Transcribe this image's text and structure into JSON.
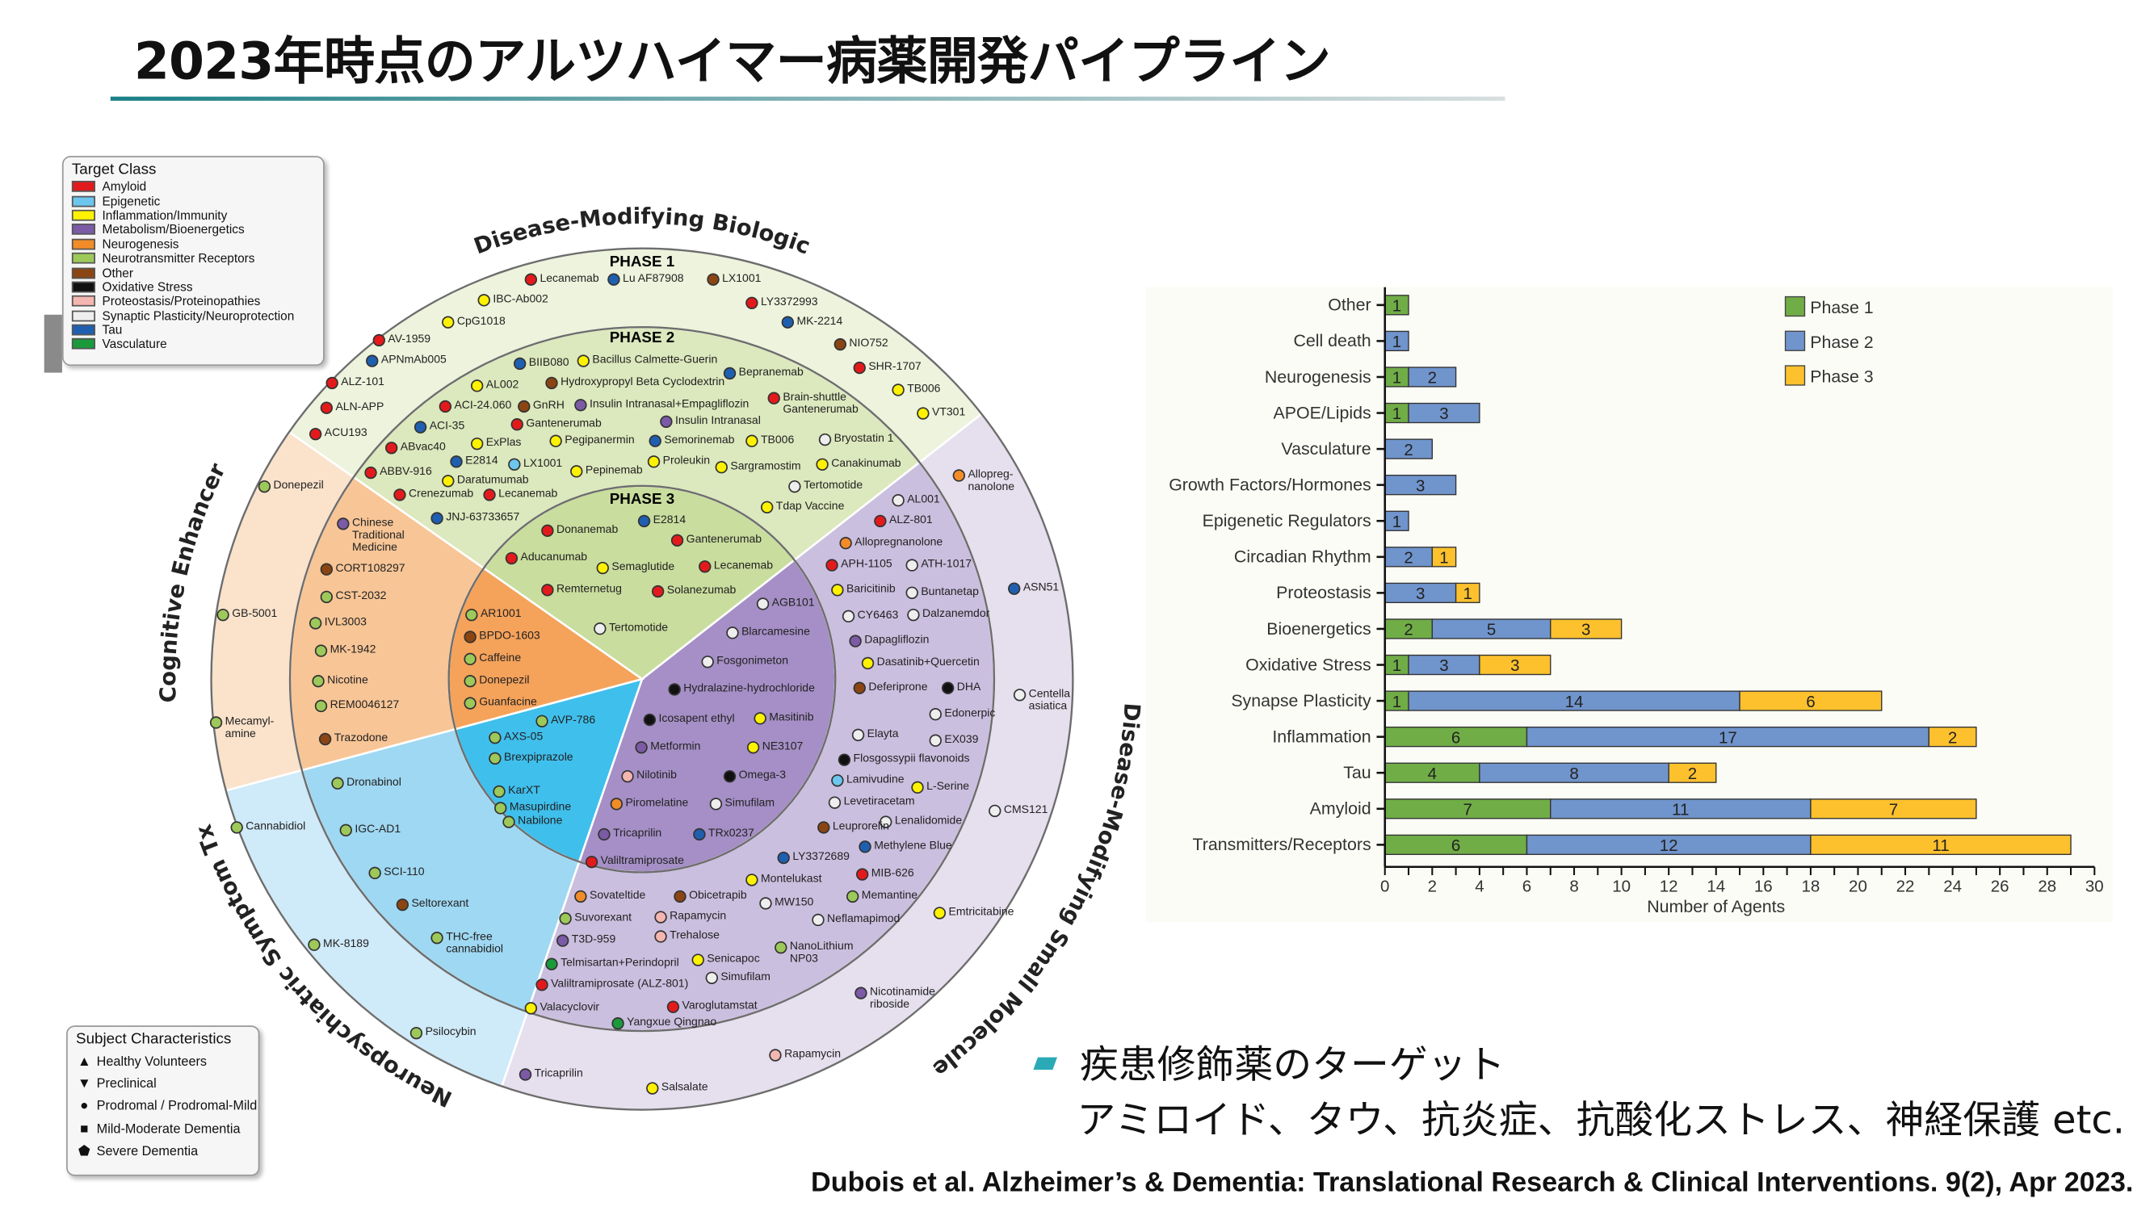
{
  "title": "2023年時点のアルツハイマー病薬開発パイプライン",
  "wheel": {
    "sectors": {
      "biologic": "Disease-Modifying Biologic",
      "cognitive": "Cognitive Enhancer",
      "neuropsych": "Neuropsychiatric Symptom Tx",
      "small_molecule": "Disease-Modifying Small Molecule"
    },
    "phases": [
      "PHASE 1",
      "PHASE 2",
      "PHASE 3"
    ],
    "target_legend": {
      "title": "Target Class",
      "items": [
        {
          "label": "Amyloid",
          "color": "#e31a1c"
        },
        {
          "label": "Epigenetic",
          "color": "#6cc6ee"
        },
        {
          "label": "Inflammation/Immunity",
          "color": "#fff200"
        },
        {
          "label": "Metabolism/Bioenergetics",
          "color": "#7b5aa6"
        },
        {
          "label": "Neurogenesis",
          "color": "#f28c28"
        },
        {
          "label": "Neurotransmitter Receptors",
          "color": "#9dc85a"
        },
        {
          "label": "Other",
          "color": "#8b4513"
        },
        {
          "label": "Oxidative Stress",
          "color": "#111111"
        },
        {
          "label": "Proteostasis/Proteinopathies",
          "color": "#f4b6b0"
        },
        {
          "label": "Synaptic Plasticity/Neuroprotection",
          "color": "#eeeeee"
        },
        {
          "label": "Tau",
          "color": "#1f5fb0"
        },
        {
          "label": "Vasculature",
          "color": "#1a9a3a"
        }
      ]
    },
    "subject_legend": {
      "title": "Subject Characteristics",
      "items": [
        {
          "label": "Healthy Volunteers",
          "icon": "triangle-up"
        },
        {
          "label": "Preclinical",
          "icon": "triangle-down"
        },
        {
          "label": "Prodromal / Prodromal-Mild",
          "icon": "circle"
        },
        {
          "label": "Mild-Moderate Dementia",
          "icon": "square"
        },
        {
          "label": "Severe Dementia",
          "icon": "pentagon"
        }
      ]
    },
    "drugs": [
      {
        "name": "Lecanemab",
        "target": "Amyloid"
      },
      {
        "name": "Lu AF87908",
        "target": "Tau"
      },
      {
        "name": "LX1001",
        "target": "Other"
      },
      {
        "name": "IBC-Ab002",
        "target": "Inflammation/Immunity"
      },
      {
        "name": "LY3372993",
        "target": "Amyloid"
      },
      {
        "name": "CpG1018",
        "target": "Inflammation/Immunity"
      },
      {
        "name": "MK-2214",
        "target": "Tau"
      },
      {
        "name": "AV-1959",
        "target": "Amyloid"
      },
      {
        "name": "NIO752",
        "target": "Other"
      },
      {
        "name": "APNmAb005",
        "target": "Tau"
      },
      {
        "name": "SHR-1707",
        "target": "Amyloid"
      },
      {
        "name": "ALZ-101",
        "target": "Amyloid"
      },
      {
        "name": "TB006",
        "target": "Inflammation/Immunity"
      },
      {
        "name": "ALN-APP",
        "target": "Amyloid"
      },
      {
        "name": "VT301",
        "target": "Inflammation/Immunity"
      },
      {
        "name": "ACU193",
        "target": "Amyloid"
      },
      {
        "name": "BIIB080",
        "target": "Tau"
      },
      {
        "name": "Bacillus Calmette-Guerin",
        "target": "Inflammation/Immunity"
      },
      {
        "name": "Bepranemab",
        "target": "Tau"
      },
      {
        "name": "AL002",
        "target": "Inflammation/Immunity"
      },
      {
        "name": "Hydroxypropyl Beta Cyclodextrin",
        "target": "Other"
      },
      {
        "name": "Brain-shuttle\nGantenerumab",
        "target": "Amyloid"
      },
      {
        "name": "ACI-24.060",
        "target": "Amyloid"
      },
      {
        "name": "GnRH",
        "target": "Other"
      },
      {
        "name": "Insulin Intranasal+Empagliflozin",
        "target": "Metabolism/Bioenergetics"
      },
      {
        "name": "Insulin Intranasal",
        "target": "Metabolism/Bioenergetics"
      },
      {
        "name": "Gantenerumab",
        "target": "Amyloid"
      },
      {
        "name": "ACI-35",
        "target": "Tau"
      },
      {
        "name": "ExPlas",
        "target": "Inflammation/Immunity"
      },
      {
        "name": "Pegipanermin",
        "target": "Inflammation/Immunity"
      },
      {
        "name": "Semorinemab",
        "target": "Tau"
      },
      {
        "name": "TB006",
        "target": "Inflammation/Immunity"
      },
      {
        "name": "Bryostatin 1",
        "target": "Synaptic Plasticity/Neuroprotection"
      },
      {
        "name": "ABvac40",
        "target": "Amyloid"
      },
      {
        "name": "E2814",
        "target": "Tau"
      },
      {
        "name": "LX1001",
        "target": "Epigenetic"
      },
      {
        "name": "Proleukin",
        "target": "Inflammation/Immunity"
      },
      {
        "name": "Sargramostim",
        "target": "Inflammation/Immunity"
      },
      {
        "name": "Canakinumab",
        "target": "Inflammation/Immunity"
      },
      {
        "name": "ABBV-916",
        "target": "Amyloid"
      },
      {
        "name": "Daratumumab",
        "target": "Inflammation/Immunity"
      },
      {
        "name": "Pepinemab",
        "target": "Inflammation/Immunity"
      },
      {
        "name": "Tertomotide",
        "target": "Synaptic Plasticity/Neuroprotection"
      },
      {
        "name": "Crenezumab",
        "target": "Amyloid"
      },
      {
        "name": "Lecanemab",
        "target": "Amyloid"
      },
      {
        "name": "JNJ-63733657",
        "target": "Tau"
      },
      {
        "name": "Tdap Vaccine",
        "target": "Inflammation/Immunity"
      },
      {
        "name": "Donanemab",
        "target": "Amyloid"
      },
      {
        "name": "E2814",
        "target": "Tau"
      },
      {
        "name": "Gantenerumab",
        "target": "Amyloid"
      },
      {
        "name": "Aducanumab",
        "target": "Amyloid"
      },
      {
        "name": "Semaglutide",
        "target": "Inflammation/Immunity"
      },
      {
        "name": "Lecanemab",
        "target": "Amyloid"
      },
      {
        "name": "Remternetug",
        "target": "Amyloid"
      },
      {
        "name": "Solanezumab",
        "target": "Amyloid"
      },
      {
        "name": "Donepezil",
        "target": "Neurotransmitter Receptors"
      },
      {
        "name": "Chinese\nTraditional\nMedicine",
        "target": "Metabolism/Bioenergetics"
      },
      {
        "name": "CORT108297",
        "target": "Other"
      },
      {
        "name": "CST-2032",
        "target": "Neurotransmitter Receptors"
      },
      {
        "name": "GB-5001",
        "target": "Neurotransmitter Receptors"
      },
      {
        "name": "IVL3003",
        "target": "Neurotransmitter Receptors"
      },
      {
        "name": "MK-1942",
        "target": "Neurotransmitter Receptors"
      },
      {
        "name": "Nicotine",
        "target": "Neurotransmitter Receptors"
      },
      {
        "name": "REM0046127",
        "target": "Neurotransmitter Receptors"
      },
      {
        "name": "Mecamyl-\namine",
        "target": "Neurotransmitter Receptors"
      },
      {
        "name": "Trazodone",
        "target": "Other"
      },
      {
        "name": "AR1001",
        "target": "Neurotransmitter Receptors"
      },
      {
        "name": "BPDO-1603",
        "target": "Other"
      },
      {
        "name": "Caffeine",
        "target": "Neurotransmitter Receptors"
      },
      {
        "name": "Donepezil",
        "target": "Neurotransmitter Receptors"
      },
      {
        "name": "Guanfacine",
        "target": "Neurotransmitter Receptors"
      },
      {
        "name": "Dronabinol",
        "target": "Neurotransmitter Receptors"
      },
      {
        "name": "Cannabidiol",
        "target": "Neurotransmitter Receptors"
      },
      {
        "name": "IGC-AD1",
        "target": "Neurotransmitter Receptors"
      },
      {
        "name": "SCI-110",
        "target": "Neurotransmitter Receptors"
      },
      {
        "name": "Seltorexant",
        "target": "Other"
      },
      {
        "name": "THC-free\ncannabidiol",
        "target": "Neurotransmitter Receptors"
      },
      {
        "name": "MK-8189",
        "target": "Neurotransmitter Receptors"
      },
      {
        "name": "Psilocybin",
        "target": "Neurotransmitter Receptors"
      },
      {
        "name": "AVP-786",
        "target": "Neurotransmitter Receptors"
      },
      {
        "name": "AXS-05",
        "target": "Neurotransmitter Receptors"
      },
      {
        "name": "Brexpiprazole",
        "target": "Neurotransmitter Receptors"
      },
      {
        "name": "KarXT",
        "target": "Neurotransmitter Receptors"
      },
      {
        "name": "Masupirdine",
        "target": "Neurotransmitter Receptors"
      },
      {
        "name": "Nabilone",
        "target": "Neurotransmitter Receptors"
      },
      {
        "name": "Tertomotide",
        "target": "Synaptic Plasticity/Neuroprotection"
      },
      {
        "name": "AGB101",
        "target": "Synaptic Plasticity/Neuroprotection"
      },
      {
        "name": "Blarcamesine",
        "target": "Synaptic Plasticity/Neuroprotection"
      },
      {
        "name": "Fosgonimeton",
        "target": "Synaptic Plasticity/Neuroprotection"
      },
      {
        "name": "Hydralazine-hydrochloride",
        "target": "Oxidative Stress"
      },
      {
        "name": "Icosapent ethyl",
        "target": "Oxidative Stress"
      },
      {
        "name": "Masitinib",
        "target": "Inflammation/Immunity"
      },
      {
        "name": "Metformin",
        "target": "Metabolism/Bioenergetics"
      },
      {
        "name": "NE3107",
        "target": "Inflammation/Immunity"
      },
      {
        "name": "Nilotinib",
        "target": "Proteostasis/Proteinopathies"
      },
      {
        "name": "Omega-3",
        "target": "Oxidative Stress"
      },
      {
        "name": "Piromelatine",
        "target": "Neurogenesis"
      },
      {
        "name": "Simufilam",
        "target": "Synaptic Plasticity/Neuroprotection"
      },
      {
        "name": "Tricaprilin",
        "target": "Metabolism/Bioenergetics"
      },
      {
        "name": "TRx0237",
        "target": "Tau"
      },
      {
        "name": "Valiltramiprosate",
        "target": "Amyloid"
      },
      {
        "name": "AL001",
        "target": "Synaptic Plasticity/Neuroprotection"
      },
      {
        "name": "ALZ-801",
        "target": "Amyloid"
      },
      {
        "name": "Allopregnanolone",
        "target": "Neurogenesis"
      },
      {
        "name": "APH-1105",
        "target": "Amyloid"
      },
      {
        "name": "ATH-1017",
        "target": "Synaptic Plasticity/Neuroprotection"
      },
      {
        "name": "Baricitinib",
        "target": "Inflammation/Immunity"
      },
      {
        "name": "Buntanetap",
        "target": "Synaptic Plasticity/Neuroprotection"
      },
      {
        "name": "CY6463",
        "target": "Synaptic Plasticity/Neuroprotection"
      },
      {
        "name": "Dalzanemdor",
        "target": "Synaptic Plasticity/Neuroprotection"
      },
      {
        "name": "Dapagliflozin",
        "target": "Metabolism/Bioenergetics"
      },
      {
        "name": "Dasatinib+Quercetin",
        "target": "Inflammation/Immunity"
      },
      {
        "name": "Deferiprone",
        "target": "Other"
      },
      {
        "name": "DHA",
        "target": "Oxidative Stress"
      },
      {
        "name": "Edonerpic",
        "target": "Synaptic Plasticity/Neuroprotection"
      },
      {
        "name": "Elayta",
        "target": "Synaptic Plasticity/Neuroprotection"
      },
      {
        "name": "EX039",
        "target": "Synaptic Plasticity/Neuroprotection"
      },
      {
        "name": "Flosgossypii flavonoids",
        "target": "Oxidative Stress"
      },
      {
        "name": "Lamivudine",
        "target": "Epigenetic"
      },
      {
        "name": "L-Serine",
        "target": "Inflammation/Immunity"
      },
      {
        "name": "Levetiracetam",
        "target": "Synaptic Plasticity/Neuroprotection"
      },
      {
        "name": "Lenalidomide",
        "target": "Synaptic Plasticity/Neuroprotection"
      },
      {
        "name": "Leuprorelin",
        "target": "Other"
      },
      {
        "name": "Methylene Blue",
        "target": "Tau"
      },
      {
        "name": "LY3372689",
        "target": "Tau"
      },
      {
        "name": "MIB-626",
        "target": "Amyloid"
      },
      {
        "name": "Montelukast",
        "target": "Inflammation/Immunity"
      },
      {
        "name": "Memantine",
        "target": "Neurotransmitter Receptors"
      },
      {
        "name": "Sovateltide",
        "target": "Neurogenesis"
      },
      {
        "name": "Obicetrapib",
        "target": "Other"
      },
      {
        "name": "MW150",
        "target": "Synaptic Plasticity/Neuroprotection"
      },
      {
        "name": "Suvorexant",
        "target": "Neurotransmitter Receptors"
      },
      {
        "name": "Rapamycin",
        "target": "Proteostasis/Proteinopathies"
      },
      {
        "name": "Neflamapimod",
        "target": "Synaptic Plasticity/Neuroprotection"
      },
      {
        "name": "Trehalose",
        "target": "Proteostasis/Proteinopathies"
      },
      {
        "name": "T3D-959",
        "target": "Metabolism/Bioenergetics"
      },
      {
        "name": "NanoLithium\nNP03",
        "target": "Neurotransmitter Receptors"
      },
      {
        "name": "Telmisartan+Perindopril",
        "target": "Vasculature"
      },
      {
        "name": "Senicapoc",
        "target": "Inflammation/Immunity"
      },
      {
        "name": "Simufilam",
        "target": "Synaptic Plasticity/Neuroprotection"
      },
      {
        "name": "Valiltramiprosate (ALZ-801)",
        "target": "Amyloid"
      },
      {
        "name": "Varoglutamstat",
        "target": "Amyloid"
      },
      {
        "name": "Valacyclovir",
        "target": "Inflammation/Immunity"
      },
      {
        "name": "Yangxue Qingnao",
        "target": "Vasculature"
      },
      {
        "name": "Allopreg-\nnanolone",
        "target": "Neurogenesis"
      },
      {
        "name": "ASN51",
        "target": "Tau"
      },
      {
        "name": "Centella\nasiatica",
        "target": "Synaptic Plasticity/Neuroprotection"
      },
      {
        "name": "CMS121",
        "target": "Synaptic Plasticity/Neuroprotection"
      },
      {
        "name": "Emtricitabine",
        "target": "Inflammation/Immunity"
      },
      {
        "name": "Nicotinamide\nriboside",
        "target": "Metabolism/Bioenergetics"
      },
      {
        "name": "Rapamycin",
        "target": "Proteostasis/Proteinopathies"
      },
      {
        "name": "Tricaprilin",
        "target": "Metabolism/Bioenergetics"
      },
      {
        "name": "Salsalate",
        "target": "Inflammation/Immunity"
      }
    ]
  },
  "chart_data": {
    "type": "bar",
    "orientation": "horizontal",
    "stacked": true,
    "categories": [
      "Other",
      "Cell death",
      "Neurogenesis",
      "APOE/Lipids",
      "Vasculature",
      "Growth Factors/Hormones",
      "Epigenetic Regulators",
      "Circadian Rhythm",
      "Proteostasis",
      "Bioenergetics",
      "Oxidative Stress",
      "Synapse Plasticity",
      "Inflammation",
      "Tau",
      "Amyloid",
      "Transmitters/Receptors"
    ],
    "series": [
      {
        "name": "Phase 1",
        "color": "#70ad47",
        "values": [
          1,
          0,
          1,
          1,
          0,
          0,
          0,
          0,
          0,
          2,
          1,
          1,
          6,
          4,
          7,
          6
        ]
      },
      {
        "name": "Phase 2",
        "color": "#7094cc",
        "values": [
          0,
          1,
          2,
          3,
          2,
          3,
          1,
          2,
          3,
          5,
          3,
          14,
          17,
          8,
          11,
          12
        ]
      },
      {
        "name": "Phase 3",
        "color": "#fdc12e",
        "values": [
          0,
          0,
          0,
          0,
          0,
          0,
          0,
          1,
          1,
          3,
          3,
          6,
          2,
          2,
          7,
          11
        ]
      }
    ],
    "xlabel": "Number of Agents",
    "ylabel": "",
    "xlim": [
      0,
      30
    ],
    "xticks": [
      0,
      2,
      4,
      6,
      8,
      10,
      12,
      14,
      16,
      18,
      20,
      22,
      24,
      26,
      28,
      30
    ],
    "grid": false,
    "legend": "top-right"
  },
  "notes": {
    "line1": "疾患修飾薬のターゲット",
    "line2": "アミロイド、タウ、抗炎症、抗酸化ストレス、神経保護 etc."
  },
  "citation": "Dubois et al. Alzheimer’s & Dementia: Translational Research & Clinical Interventions. 9(2), Apr 2023."
}
